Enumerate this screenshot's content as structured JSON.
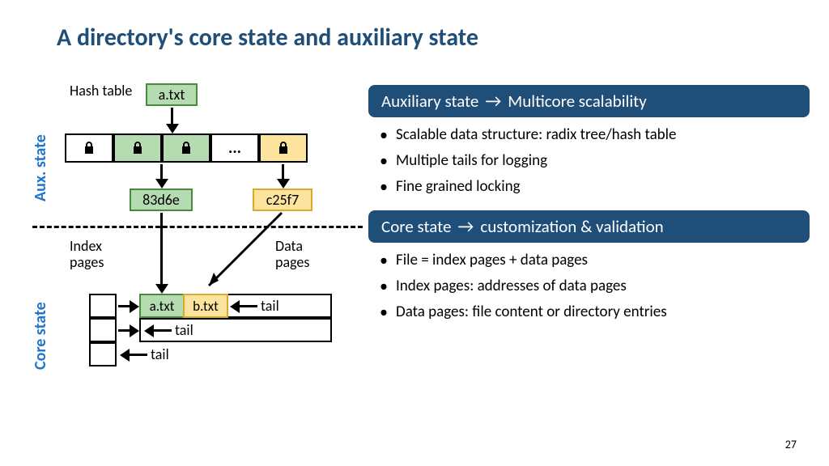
{
  "title": "A directory's core state and auxiliary state",
  "page_number": "27",
  "colors": {
    "title": "#1f4e79",
    "banner_bg": "#1f4e79",
    "accent_blue": "#1f77c9",
    "green_fill": "#b5dcb1",
    "green_border": "#4a8a3d",
    "yellow_fill": "#fce39e",
    "yellow_border": "#d9a82e",
    "white": "#ffffff",
    "black": "#000000"
  },
  "diagram": {
    "aux_label": "Aux. state",
    "core_label": "Core state",
    "hash_table_label": "Hash table",
    "index_pages_label": "Index pages",
    "data_pages_label": "Data pages",
    "ellipsis": "...",
    "root_file": "a.txt",
    "hash_green": "83d6e",
    "hash_yellow": "c25f7",
    "file_a": "a.txt",
    "file_b": "b.txt",
    "tail": "tail"
  },
  "right": {
    "banner1_left": "Auxiliary state",
    "banner1_right": "Multicore scalability",
    "bullets1": [
      "Scalable data structure: radix tree/hash table",
      "Multiple tails for logging",
      "Fine grained locking"
    ],
    "banner2_left": "Core state",
    "banner2_right": "customization & validation",
    "bullets2": [
      "File = index pages + data pages",
      "Index pages: addresses of data pages",
      "Data pages: file content or directory entries"
    ]
  }
}
